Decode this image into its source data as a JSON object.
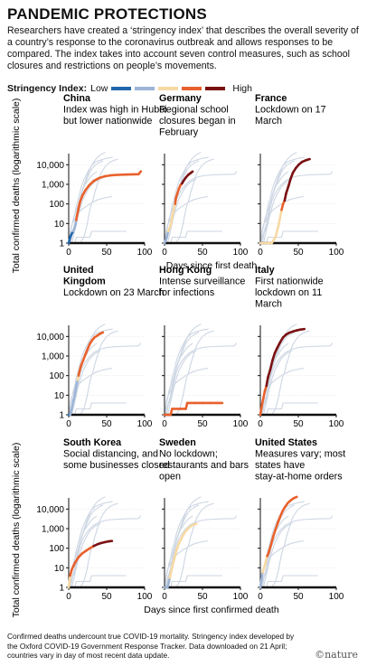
{
  "title": "PANDEMIC PROTECTIONS",
  "subtitle": "Researchers have created a ‘stringency index’ that describes the overall severity of a country’s response to the coronavirus outbreak and allows responses to be compared. The index takes into account seven control measures, such as school closures and restrictions on people’s movements.",
  "legend": {
    "label": "Stringency Index:",
    "low": "Low",
    "high": "High"
  },
  "colors": {
    "s1": "#2166ac",
    "s2": "#9db4d6",
    "s3": "#f7d9a3",
    "s4": "#e8612c",
    "s5": "#7a1012",
    "background_lines": "#cdd6e3",
    "axis": "#111111"
  },
  "footnote": "Confirmed deaths undercount true COVID-19 mortality. Stringency index developed by the Oxford COVID-19 Government Response Tracker. Data downloaded on 21 April; countries vary in day of most recent data update.",
  "brand": "©nature",
  "chart_data": {
    "type": "line",
    "ylabel": "Total confirmed deaths (logarithmic scale)",
    "xlabel_row1": "Days since first death",
    "xlabel_row3": "Days since first confirmed death",
    "y_scale": "log",
    "ylim": [
      1,
      30000
    ],
    "yticks": [
      1,
      10,
      100,
      1000,
      10000
    ],
    "ytick_labels": [
      "1",
      "10",
      "100",
      "1,000",
      "10,000"
    ],
    "xlim": [
      0,
      100
    ],
    "xticks": [
      0,
      50,
      100
    ],
    "xtick_labels": [
      "0",
      "50",
      "100"
    ],
    "panels": [
      {
        "country": "China",
        "note": "Index was high in Hubei but lower nationwide",
        "points": [
          [
            0,
            1,
            1
          ],
          [
            2,
            2,
            1
          ],
          [
            4,
            3,
            1
          ],
          [
            6,
            4,
            1
          ],
          [
            8,
            6,
            2
          ],
          [
            9,
            9,
            2
          ],
          [
            10,
            15,
            2
          ],
          [
            11,
            25,
            4
          ],
          [
            13,
            60,
            4
          ],
          [
            15,
            130,
            4
          ],
          [
            18,
            260,
            4
          ],
          [
            22,
            500,
            4
          ],
          [
            27,
            900,
            4
          ],
          [
            33,
            1500,
            4
          ],
          [
            40,
            2100,
            4
          ],
          [
            48,
            2600,
            4
          ],
          [
            56,
            2900,
            4
          ],
          [
            65,
            3050,
            4
          ],
          [
            75,
            3150,
            4
          ],
          [
            85,
            3250,
            4
          ],
          [
            92,
            3300,
            4
          ],
          [
            95,
            4600,
            4
          ]
        ]
      },
      {
        "country": "Germany",
        "note": "Regional school closures began in February",
        "points": [
          [
            0,
            1,
            2
          ],
          [
            3,
            2,
            2
          ],
          [
            5,
            4,
            2
          ],
          [
            8,
            8,
            3
          ],
          [
            10,
            20,
            3
          ],
          [
            12,
            50,
            3
          ],
          [
            14,
            100,
            3
          ],
          [
            15,
            200,
            4
          ],
          [
            17,
            350,
            4
          ],
          [
            19,
            600,
            4
          ],
          [
            21,
            900,
            4
          ],
          [
            23,
            1100,
            4
          ],
          [
            25,
            1500,
            5
          ],
          [
            28,
            2200,
            5
          ],
          [
            31,
            3000,
            5
          ],
          [
            34,
            3700,
            5
          ],
          [
            37,
            4500,
            5
          ]
        ]
      },
      {
        "country": "France",
        "note": "Lockdown on 17 March",
        "points": [
          [
            0,
            1,
            3
          ],
          [
            10,
            1,
            3
          ],
          [
            15,
            1,
            3
          ],
          [
            20,
            2,
            3
          ],
          [
            22,
            4,
            3
          ],
          [
            24,
            8,
            3
          ],
          [
            26,
            20,
            3
          ],
          [
            28,
            50,
            3
          ],
          [
            30,
            100,
            4
          ],
          [
            32,
            150,
            4
          ],
          [
            34,
            350,
            5
          ],
          [
            37,
            800,
            5
          ],
          [
            40,
            2000,
            5
          ],
          [
            43,
            4000,
            5
          ],
          [
            47,
            7000,
            5
          ],
          [
            51,
            10500,
            5
          ],
          [
            55,
            14000,
            5
          ],
          [
            60,
            17000,
            5
          ],
          [
            65,
            19500,
            5
          ]
        ]
      },
      {
        "country": "United Kingdom",
        "note": "Lockdown on 23 March",
        "points": [
          [
            0,
            1,
            1
          ],
          [
            2,
            1,
            1
          ],
          [
            4,
            2,
            2
          ],
          [
            6,
            5,
            2
          ],
          [
            8,
            10,
            2
          ],
          [
            10,
            30,
            2
          ],
          [
            12,
            60,
            2
          ],
          [
            13,
            100,
            3
          ],
          [
            14,
            150,
            4
          ],
          [
            16,
            300,
            4
          ],
          [
            19,
            600,
            4
          ],
          [
            22,
            1200,
            4
          ],
          [
            25,
            2300,
            4
          ],
          [
            28,
            4300,
            4
          ],
          [
            31,
            6500,
            4
          ],
          [
            34,
            8900,
            4
          ],
          [
            38,
            11300,
            4
          ],
          [
            41,
            13500,
            4
          ],
          [
            45,
            16000,
            4
          ]
        ]
      },
      {
        "country": "Hong Kong",
        "note": "Intense surveillance for infections",
        "points": [
          [
            0,
            1,
            4
          ],
          [
            5,
            1,
            4
          ],
          [
            8,
            1,
            4
          ],
          [
            10,
            2,
            4
          ],
          [
            20,
            2,
            4
          ],
          [
            28,
            2,
            4
          ],
          [
            30,
            4,
            4
          ],
          [
            40,
            4,
            4
          ],
          [
            50,
            4,
            4
          ],
          [
            60,
            4,
            4
          ],
          [
            70,
            4,
            4
          ],
          [
            76,
            4,
            4
          ]
        ]
      },
      {
        "country": "Italy",
        "note": "First nationwide lockdown on 11 March",
        "points": [
          [
            0,
            1,
            4
          ],
          [
            2,
            3,
            4
          ],
          [
            4,
            7,
            4
          ],
          [
            6,
            17,
            4
          ],
          [
            8,
            30,
            4
          ],
          [
            10,
            80,
            5
          ],
          [
            13,
            200,
            5
          ],
          [
            16,
            600,
            5
          ],
          [
            19,
            1400,
            5
          ],
          [
            22,
            2500,
            5
          ],
          [
            26,
            5000,
            5
          ],
          [
            30,
            9000,
            5
          ],
          [
            34,
            12500,
            5
          ],
          [
            38,
            15500,
            5
          ],
          [
            43,
            18000,
            5
          ],
          [
            48,
            20500,
            5
          ],
          [
            53,
            22500,
            5
          ],
          [
            58,
            24000,
            5
          ]
        ]
      },
      {
        "country": "South Korea",
        "note": "Social distancing, and some businesses closed",
        "points": [
          [
            0,
            1,
            2
          ],
          [
            2,
            4,
            3
          ],
          [
            4,
            8,
            4
          ],
          [
            6,
            12,
            4
          ],
          [
            9,
            20,
            4
          ],
          [
            13,
            35,
            4
          ],
          [
            18,
            55,
            4
          ],
          [
            23,
            75,
            4
          ],
          [
            28,
            100,
            4
          ],
          [
            33,
            130,
            4
          ],
          [
            38,
            160,
            5
          ],
          [
            43,
            185,
            5
          ],
          [
            48,
            205,
            5
          ],
          [
            53,
            225,
            5
          ],
          [
            57,
            235,
            5
          ]
        ]
      },
      {
        "country": "Sweden",
        "note": "No lockdown; restaurants and bars open",
        "points": [
          [
            0,
            1,
            2
          ],
          [
            4,
            1,
            2
          ],
          [
            7,
            3,
            2
          ],
          [
            9,
            7,
            3
          ],
          [
            11,
            15,
            3
          ],
          [
            13,
            30,
            3
          ],
          [
            15,
            60,
            3
          ],
          [
            17,
            110,
            3
          ],
          [
            19,
            180,
            3
          ],
          [
            22,
            300,
            3
          ],
          [
            25,
            500,
            3
          ],
          [
            28,
            750,
            3
          ],
          [
            31,
            1000,
            3
          ],
          [
            34,
            1300,
            3
          ],
          [
            38,
            1600,
            3
          ],
          [
            42,
            1800,
            3
          ]
        ]
      },
      {
        "country": "United States",
        "note": "Measures vary; most states have stay-at-home orders",
        "points": [
          [
            0,
            1,
            2
          ],
          [
            3,
            6,
            2
          ],
          [
            5,
            10,
            3
          ],
          [
            7,
            20,
            3
          ],
          [
            9,
            40,
            3
          ],
          [
            11,
            60,
            4
          ],
          [
            14,
            150,
            4
          ],
          [
            17,
            400,
            4
          ],
          [
            20,
            900,
            4
          ],
          [
            23,
            2000,
            4
          ],
          [
            26,
            4000,
            4
          ],
          [
            29,
            7500,
            4
          ],
          [
            32,
            12000,
            4
          ],
          [
            36,
            20000,
            4
          ],
          [
            40,
            28000,
            4
          ],
          [
            44,
            36000,
            4
          ],
          [
            48,
            42000,
            4
          ]
        ]
      }
    ]
  }
}
